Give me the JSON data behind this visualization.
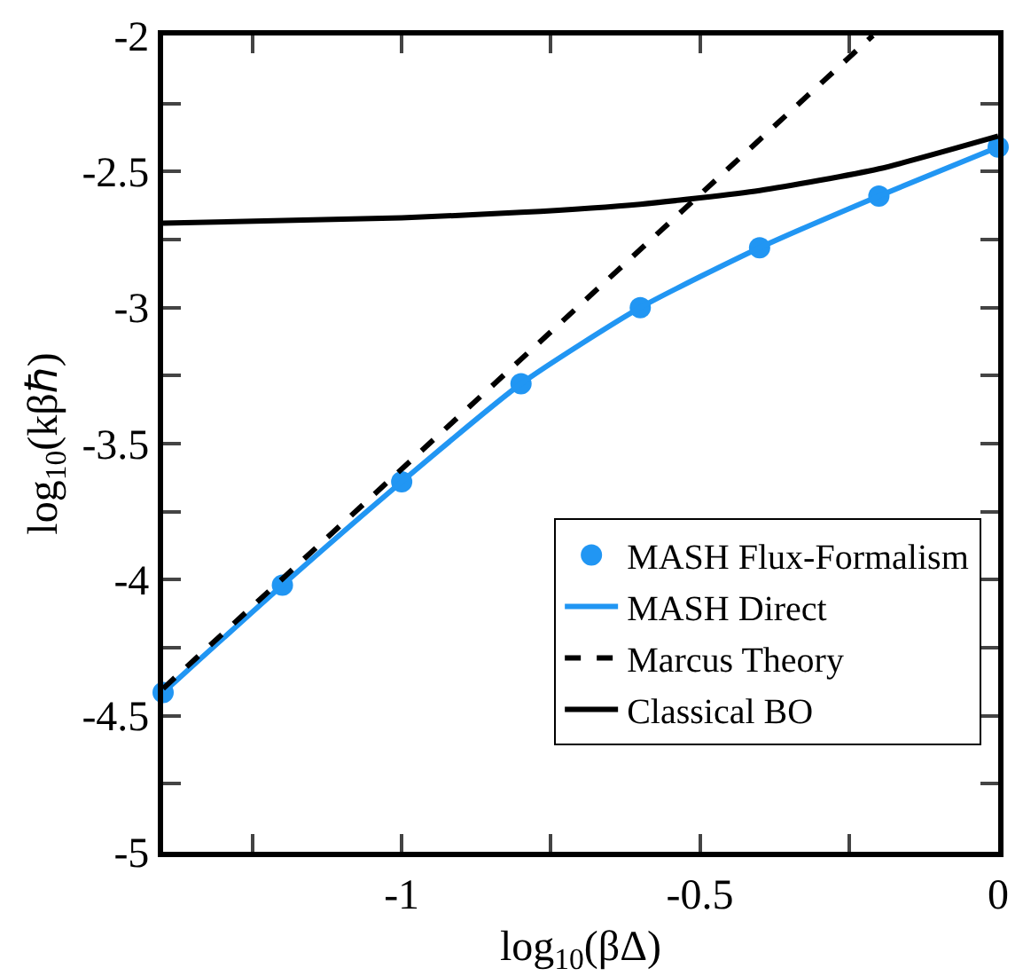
{
  "chart_data": {
    "type": "line",
    "xlabel": "log$_{10}$(βΔ)",
    "ylabel": "log$_{10}$(kβℏ)",
    "xlim": [
      -1.4,
      0
    ],
    "xticks": [
      {
        "value": -1.25,
        "label": null
      },
      -1,
      {
        "value": -0.75,
        "label": null
      },
      -0.5,
      {
        "value": -0.25,
        "label": null
      },
      0
    ],
    "ylim": [
      -5,
      -2
    ],
    "yticks": [
      -5,
      {
        "value": -4.75,
        "label": null
      },
      -4.5,
      {
        "value": -4.25,
        "label": null
      },
      -4,
      {
        "value": -3.75,
        "label": null
      },
      -3.5,
      {
        "value": -3.25,
        "label": null
      },
      -3,
      {
        "value": -2.75,
        "label": null
      },
      -2.5,
      {
        "value": -2.25,
        "label": null
      },
      -2
    ],
    "grid": false,
    "legend": "bottom right",
    "series": [
      {
        "name": "MASH Flux-Formalism",
        "type": "scatter",
        "marker": "circle",
        "color": "#2196f3",
        "x": [
          -1.4,
          -1.2,
          -1.0,
          -0.8,
          -0.6,
          -0.4,
          -0.2,
          0
        ],
        "values": [
          -4.415,
          -4.02,
          -3.64,
          -3.28,
          -3.0,
          -2.78,
          -2.59,
          -2.41
        ]
      },
      {
        "name": "MASH Direct",
        "line_style": "solid",
        "color": "#2196f3",
        "x": [
          -1.4,
          -1.2,
          -1.0,
          -0.8,
          -0.6,
          -0.4,
          -0.2,
          0
        ],
        "values": [
          -4.415,
          -4.02,
          -3.64,
          -3.28,
          -3.0,
          -2.78,
          -2.59,
          -2.41
        ]
      },
      {
        "name": "Marcus Theory",
        "line_style": "dashed",
        "color": "#000000",
        "x": [
          -1.4,
          -0.21
        ],
        "values": [
          -4.4,
          -2.0
        ]
      },
      {
        "name": "Classical BO",
        "line_style": "solid",
        "color": "#000000",
        "x": [
          -1.4,
          -1.0,
          -0.8,
          -0.6,
          -0.4,
          -0.2,
          0
        ],
        "values": [
          -2.69,
          -2.67,
          -2.65,
          -2.62,
          -2.57,
          -2.49,
          -2.37
        ]
      }
    ]
  }
}
